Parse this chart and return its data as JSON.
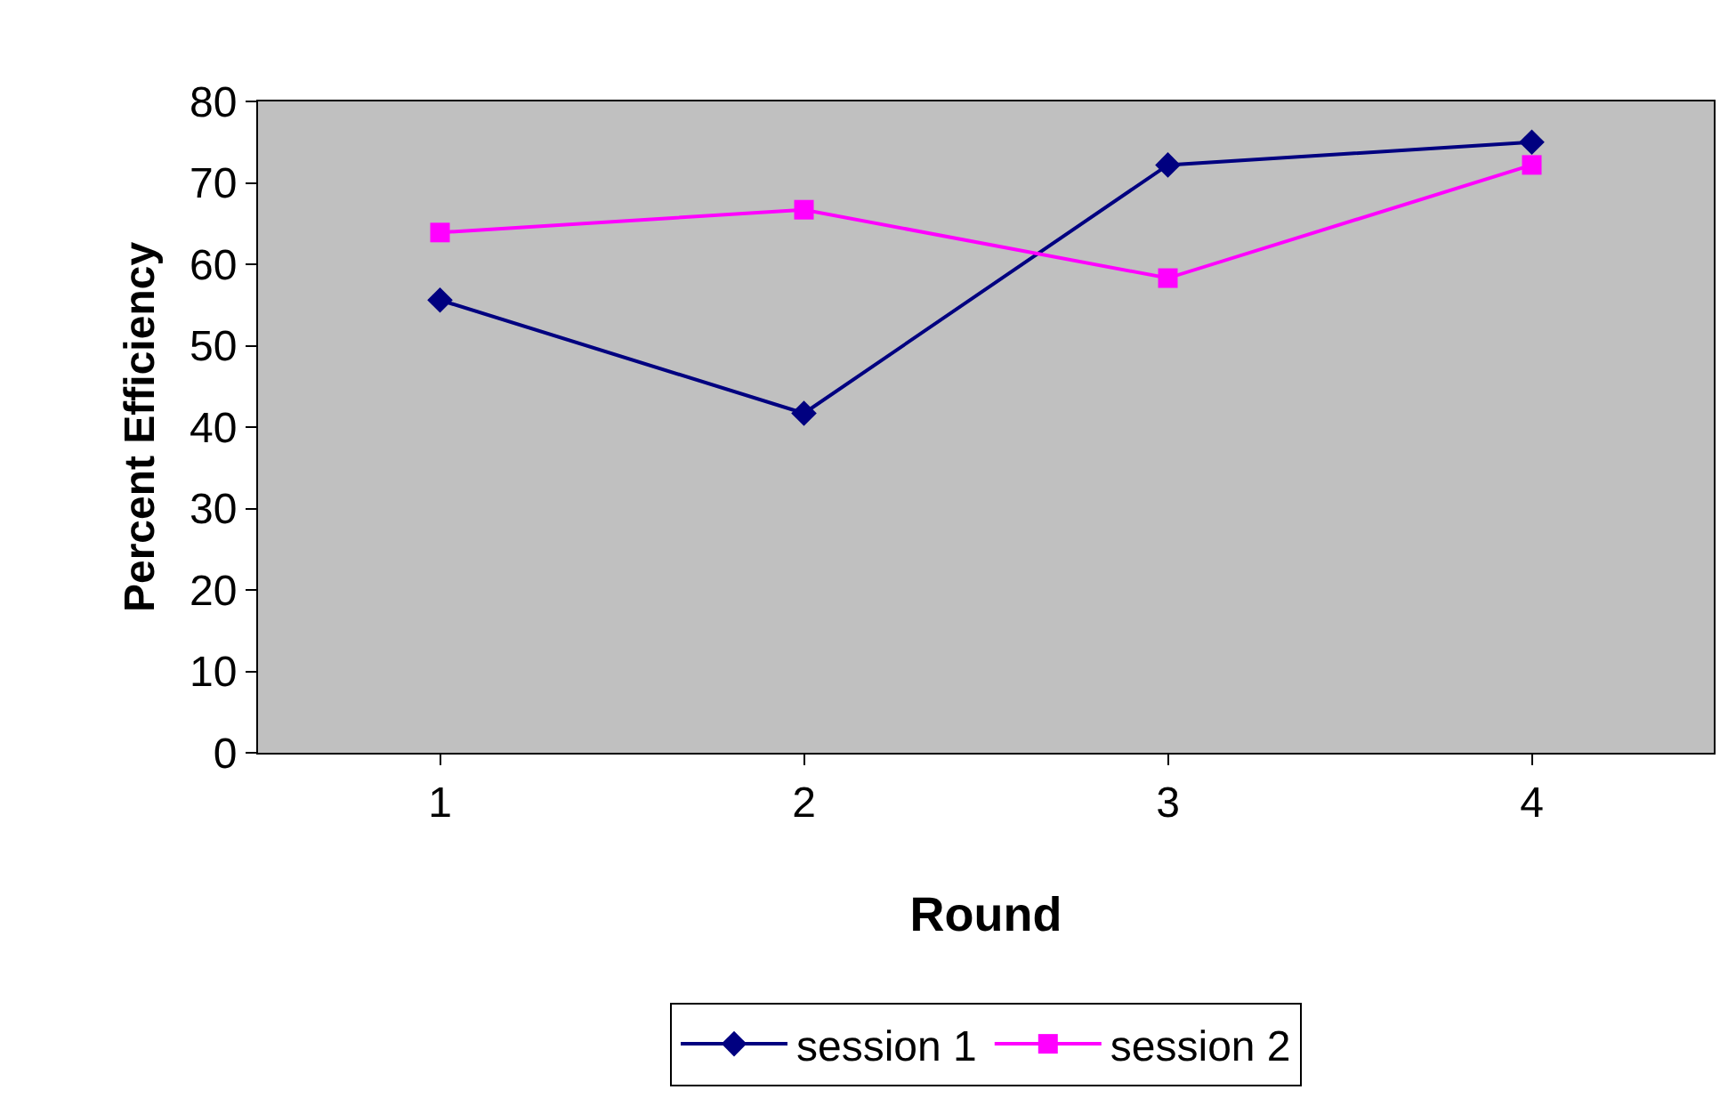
{
  "chart_data": {
    "type": "line",
    "xlabel": "Round",
    "ylabel": "Percent Efficiency",
    "categories": [
      "1",
      "2",
      "3",
      "4"
    ],
    "series": [
      {
        "name": "session 1",
        "color": "#000080",
        "marker": "diamond",
        "values": [
          55.6,
          41.7,
          72.2,
          75
        ]
      },
      {
        "name": "session 2",
        "color": "#ff00ff",
        "marker": "square",
        "values": [
          63.9,
          66.7,
          58.3,
          72.2
        ]
      }
    ],
    "ylim": [
      0,
      80
    ],
    "yticks": [
      0,
      10,
      20,
      30,
      40,
      50,
      60,
      70,
      80
    ],
    "grid": false,
    "legend": "bottom",
    "line_style": "solid"
  }
}
